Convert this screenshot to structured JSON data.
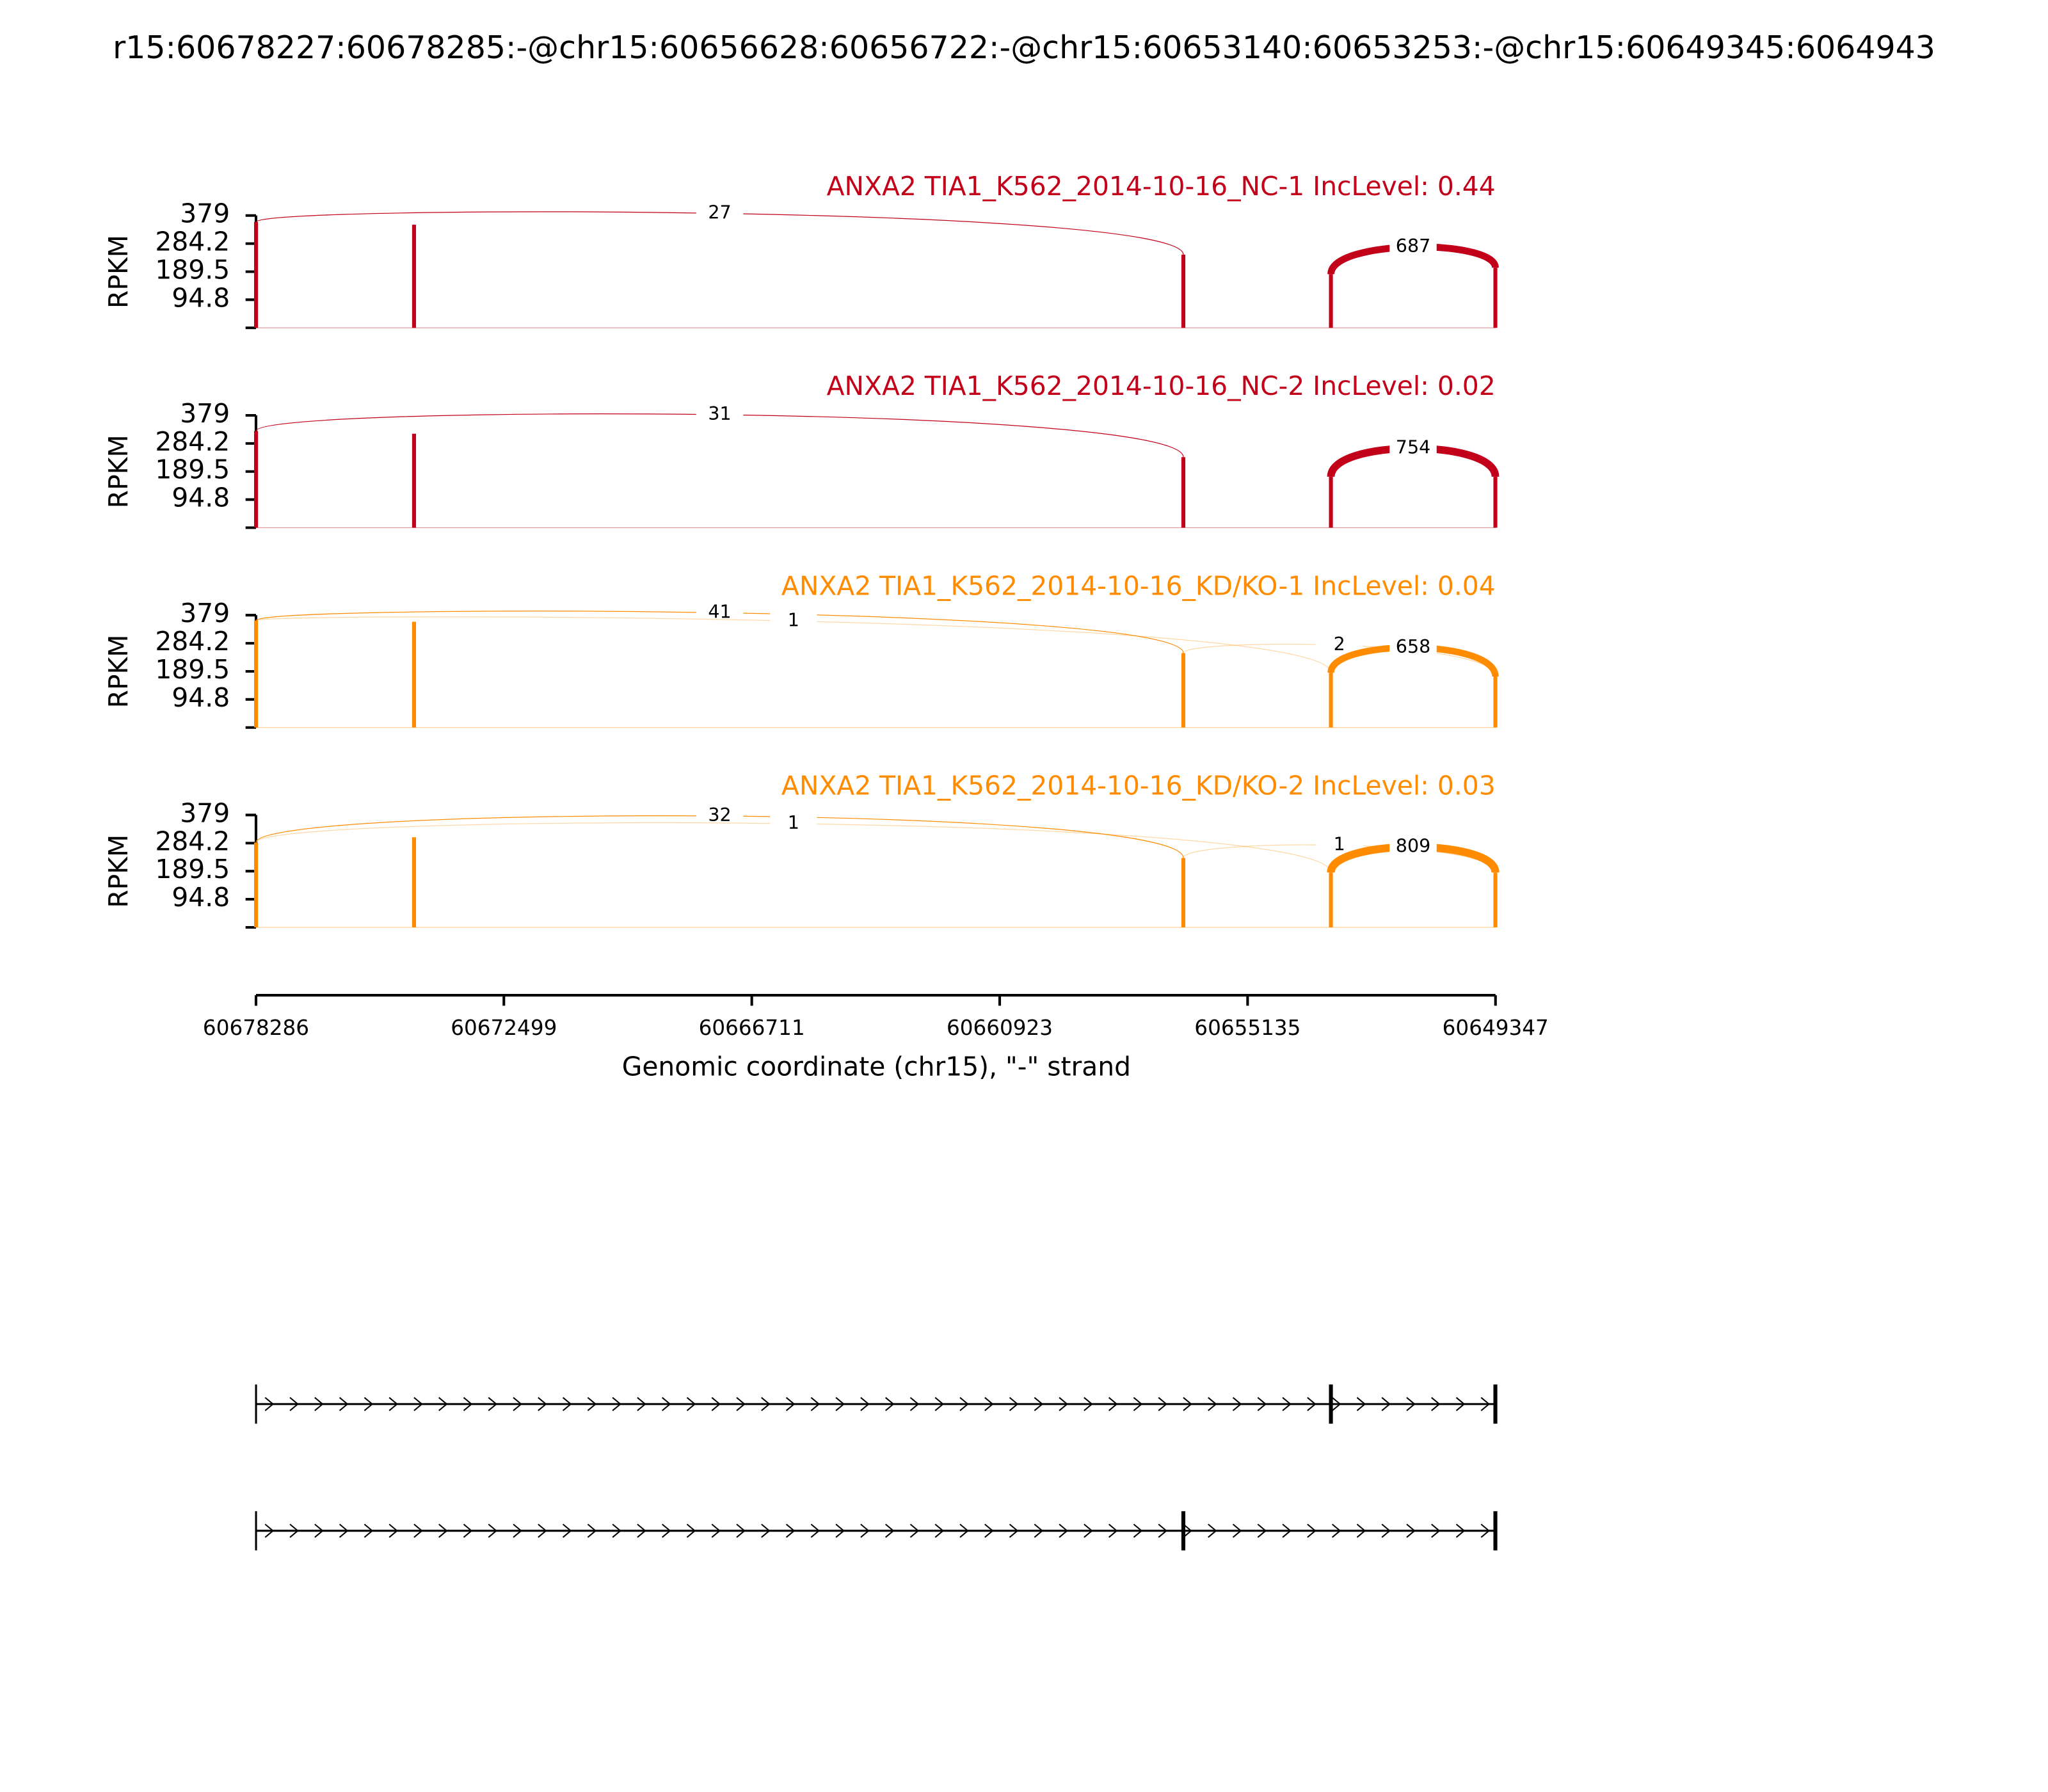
{
  "chart_data": {
    "type": "sashimi",
    "title": "r15:60678227:60678285:-@chr15:60656628:60656722:-@chr15:60653140:60653253:-@chr15:60649345:6064943",
    "xlabel": "Genomic coordinate (chr15), \"-\" strand",
    "xlim": [
      60678286,
      60649347
    ],
    "xticks": [
      60678286,
      60672499,
      60666711,
      60660923,
      60655135,
      60649347
    ],
    "ylabel": "RPKM",
    "ylim": [
      0,
      379
    ],
    "yticks": [
      94.8,
      189.5,
      284.2,
      379
    ],
    "panels": [
      {
        "title": "ANXA2 TIA1_K562_2014-10-16_NC-1 IncLevel: 0.44",
        "color": "#c20019",
        "coverage": {
          "x": [
            60678285,
            60674596,
            60656635,
            60653190,
            60649350
          ],
          "values": [
            357,
            348,
            247,
            181,
            203
          ]
        },
        "junctions": [
          {
            "start": 60678285,
            "end": 60656635,
            "count": 27
          },
          {
            "start": 60653190,
            "end": 60649350,
            "count": 687
          }
        ]
      },
      {
        "title": "ANXA2 TIA1_K562_2014-10-16_NC-2 IncLevel: 0.02",
        "color": "#c20019",
        "coverage": {
          "x": [
            60678285,
            60674596,
            60656635,
            60653190,
            60649350
          ],
          "values": [
            326,
            317,
            238,
            172,
            172
          ]
        },
        "junctions": [
          {
            "start": 60678285,
            "end": 60656635,
            "count": 31
          },
          {
            "start": 60653190,
            "end": 60649350,
            "count": 754
          }
        ]
      },
      {
        "title": "ANXA2 TIA1_K562_2014-10-16_KD/KO-1 IncLevel: 0.04",
        "color": "#ff8c00",
        "coverage": {
          "x": [
            60678285,
            60674596,
            60656635,
            60653190,
            60649350
          ],
          "values": [
            361,
            357,
            251,
            185,
            172
          ]
        },
        "junctions": [
          {
            "start": 60678285,
            "end": 60656635,
            "count": 41
          },
          {
            "start": 60678285,
            "end": 60653190,
            "count": 1
          },
          {
            "start": 60656635,
            "end": 60649350,
            "count": 2
          },
          {
            "start": 60653190,
            "end": 60649350,
            "count": 658
          }
        ]
      },
      {
        "title": "ANXA2 TIA1_K562_2014-10-16_KD/KO-2 IncLevel: 0.03",
        "color": "#ff8c00",
        "coverage": {
          "x": [
            60678285,
            60674596,
            60656635,
            60653190,
            60649350
          ],
          "values": [
            286,
            304,
            234,
            185,
            185
          ]
        },
        "junctions": [
          {
            "start": 60678285,
            "end": 60656635,
            "count": 32
          },
          {
            "start": 60678285,
            "end": 60653190,
            "count": 1
          },
          {
            "start": 60656635,
            "end": 60649350,
            "count": 1
          },
          {
            "start": 60653190,
            "end": 60649350,
            "count": 809
          }
        ]
      }
    ],
    "transcripts": [
      {
        "exons": [
          60678285,
          60653190,
          60649350
        ]
      },
      {
        "exons": [
          60678285,
          60656635,
          60649350
        ]
      }
    ]
  }
}
